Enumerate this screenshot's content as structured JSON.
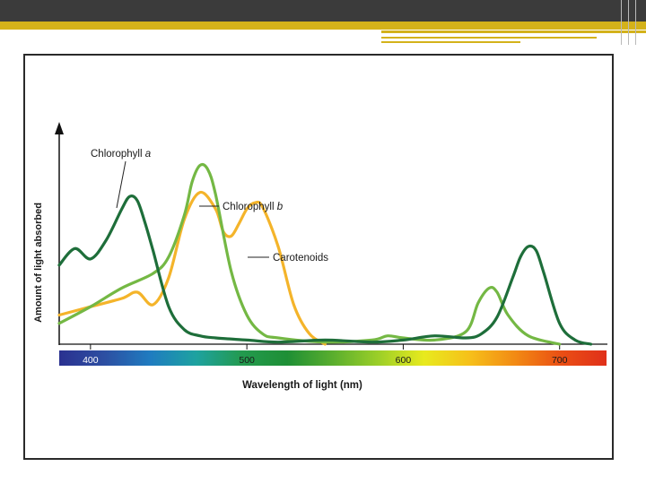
{
  "chart_data": {
    "type": "line",
    "title": "",
    "xlabel": "Wavelength of light (nm)",
    "ylabel": "Amount of light absorbed",
    "xlim": [
      380,
      730
    ],
    "ylim": [
      0,
      1
    ],
    "grid": false,
    "legend": "inline labels with leader lines",
    "x_ticks": [
      "400",
      "500",
      "600",
      "700"
    ],
    "series": [
      {
        "name": "Chlorophyll a",
        "color": "#1e6e3a",
        "points": [
          [
            380,
            0.38
          ],
          [
            390,
            0.46
          ],
          [
            400,
            0.41
          ],
          [
            410,
            0.5
          ],
          [
            420,
            0.65
          ],
          [
            425,
            0.71
          ],
          [
            430,
            0.69
          ],
          [
            435,
            0.58
          ],
          [
            440,
            0.45
          ],
          [
            450,
            0.18
          ],
          [
            460,
            0.07
          ],
          [
            470,
            0.04
          ],
          [
            480,
            0.03
          ],
          [
            500,
            0.02
          ],
          [
            520,
            0.01
          ],
          [
            550,
            0.02
          ],
          [
            580,
            0.01
          ],
          [
            600,
            0.02
          ],
          [
            620,
            0.04
          ],
          [
            640,
            0.03
          ],
          [
            650,
            0.05
          ],
          [
            660,
            0.13
          ],
          [
            670,
            0.32
          ],
          [
            675,
            0.42
          ],
          [
            680,
            0.47
          ],
          [
            685,
            0.45
          ],
          [
            690,
            0.34
          ],
          [
            700,
            0.1
          ],
          [
            710,
            0.02
          ],
          [
            720,
            0.0
          ]
        ]
      },
      {
        "name": "Chlorophyll b",
        "color": "#74b844",
        "points": [
          [
            380,
            0.1
          ],
          [
            400,
            0.18
          ],
          [
            420,
            0.27
          ],
          [
            440,
            0.34
          ],
          [
            450,
            0.42
          ],
          [
            460,
            0.62
          ],
          [
            465,
            0.78
          ],
          [
            470,
            0.86
          ],
          [
            475,
            0.84
          ],
          [
            480,
            0.72
          ],
          [
            490,
            0.35
          ],
          [
            500,
            0.14
          ],
          [
            510,
            0.05
          ],
          [
            520,
            0.03
          ],
          [
            550,
            0.01
          ],
          [
            580,
            0.02
          ],
          [
            590,
            0.04
          ],
          [
            600,
            0.03
          ],
          [
            620,
            0.02
          ],
          [
            640,
            0.06
          ],
          [
            648,
            0.2
          ],
          [
            655,
            0.27
          ],
          [
            660,
            0.25
          ],
          [
            667,
            0.14
          ],
          [
            680,
            0.04
          ],
          [
            700,
            0.0
          ]
        ]
      },
      {
        "name": "Carotenoids",
        "color": "#f4b42a",
        "points": [
          [
            380,
            0.14
          ],
          [
            400,
            0.18
          ],
          [
            420,
            0.22
          ],
          [
            430,
            0.25
          ],
          [
            440,
            0.19
          ],
          [
            450,
            0.32
          ],
          [
            460,
            0.6
          ],
          [
            470,
            0.73
          ],
          [
            480,
            0.65
          ],
          [
            485,
            0.54
          ],
          [
            490,
            0.52
          ],
          [
            495,
            0.58
          ],
          [
            500,
            0.65
          ],
          [
            505,
            0.68
          ],
          [
            510,
            0.66
          ],
          [
            520,
            0.47
          ],
          [
            530,
            0.19
          ],
          [
            540,
            0.05
          ],
          [
            550,
            0.0
          ]
        ]
      }
    ],
    "annotations": [
      {
        "label_prefix": "Chlorophyll",
        "label_italic": "a",
        "points_to": [
          427,
          0.7
        ]
      },
      {
        "label_prefix": "Chlorophyll",
        "label_italic": "b",
        "points_to": [
          478,
          0.75
        ]
      },
      {
        "label_prefix": "Carotenoids",
        "label_italic": "",
        "points_to": [
          511,
          0.62
        ]
      }
    ],
    "spectrum_colors": [
      "#2a3190",
      "#2d4fa2",
      "#1f7cc0",
      "#1ea2a0",
      "#239a4f",
      "#1e8f35",
      "#5aae2e",
      "#9ccf28",
      "#e8ea1e",
      "#f6c01a",
      "#f28a14",
      "#ea4f14",
      "#e0301a"
    ]
  }
}
